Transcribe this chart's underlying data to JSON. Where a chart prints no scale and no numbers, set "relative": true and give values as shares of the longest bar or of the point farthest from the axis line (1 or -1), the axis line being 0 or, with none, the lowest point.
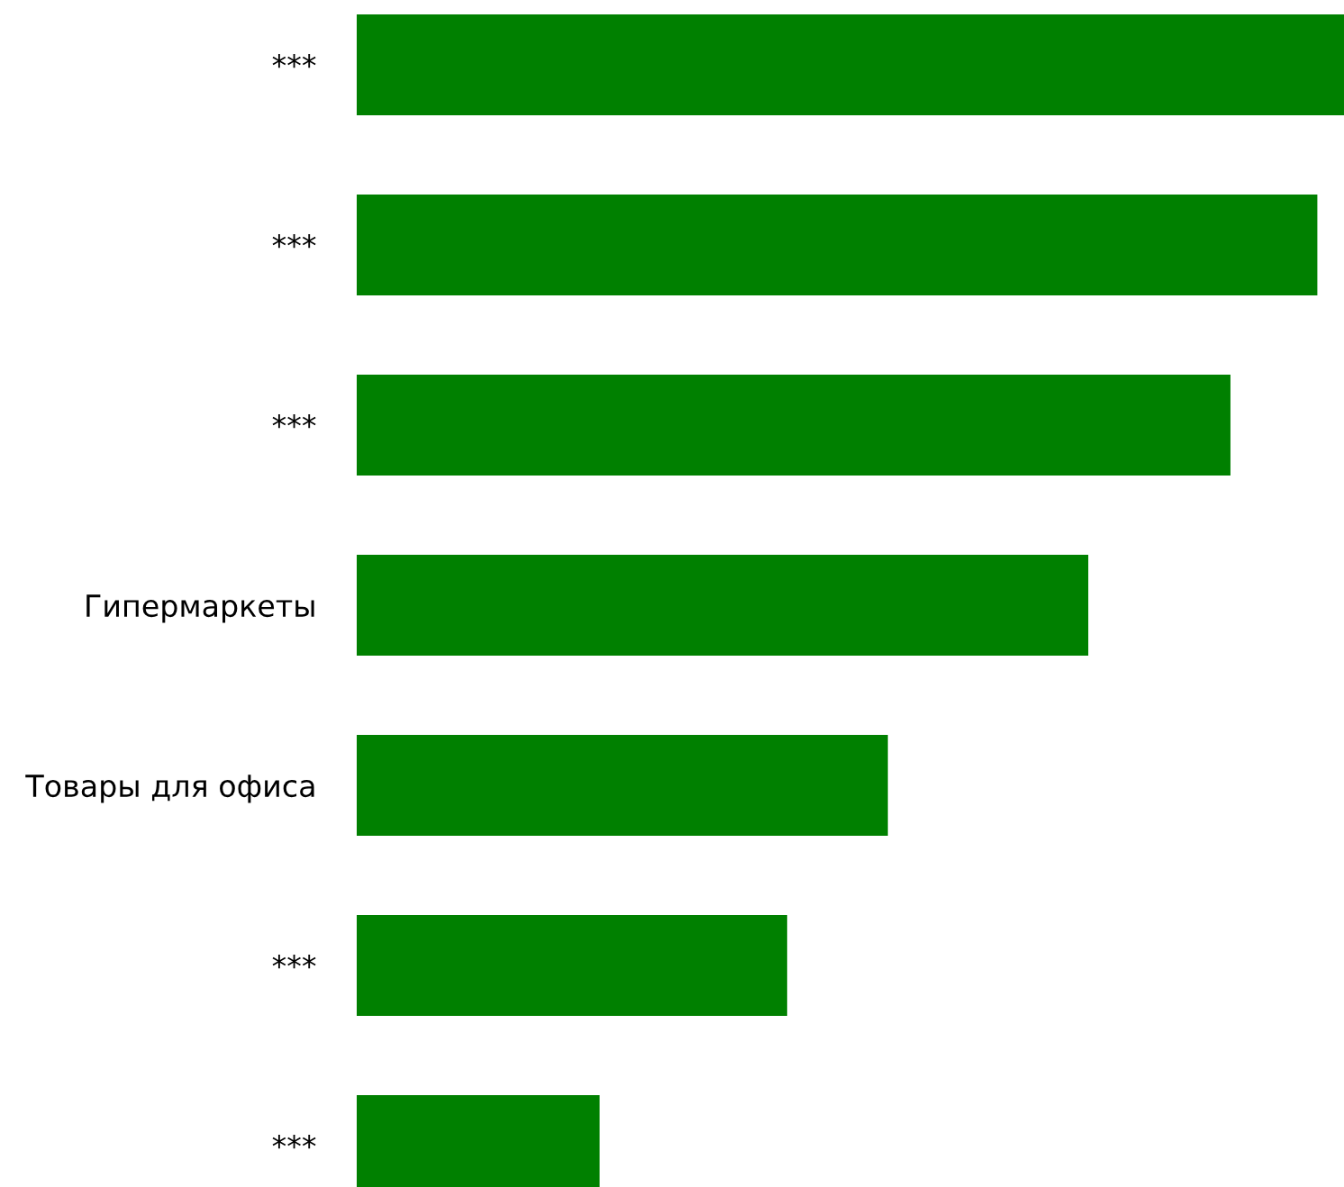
{
  "chart_data": {
    "type": "bar",
    "orientation": "horizontal",
    "relative": true,
    "categories": [
      "***",
      "***",
      "***",
      "Гипермаркеты",
      "Товары для офиса",
      "***",
      "***"
    ],
    "values": [
      1,
      0.973,
      0.885,
      0.741,
      0.538,
      0.436,
      0.246
    ],
    "color": "#008000",
    "grid": false,
    "legend": false
  }
}
